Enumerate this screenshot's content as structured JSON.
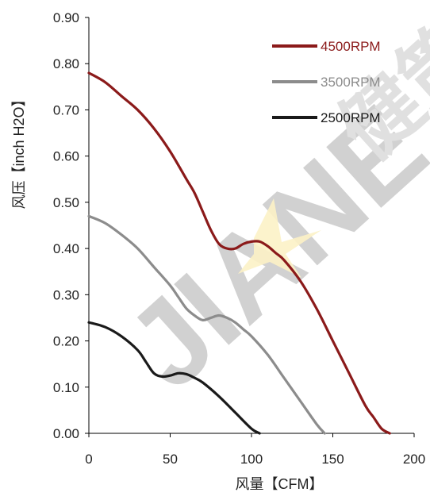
{
  "chart_data": {
    "type": "line",
    "title": "",
    "xlabel": "风量【CFM】",
    "ylabel": "风压【inch H2O】",
    "xlim": [
      0,
      200
    ],
    "ylim": [
      0,
      0.9
    ],
    "x_ticks": [
      "0",
      "50",
      "100",
      "150",
      "200"
    ],
    "y_ticks": [
      "0.00",
      "0.10",
      "0.20",
      "0.30",
      "0.40",
      "0.50",
      "0.60",
      "0.70",
      "0.80",
      "0.90"
    ],
    "grid": false,
    "legend_position": "top-right",
    "series": [
      {
        "name": "4500RPM",
        "color": "#8b1a1a",
        "x": [
          0,
          10,
          20,
          30,
          40,
          50,
          60,
          65,
          70,
          75,
          80,
          85,
          90,
          95,
          100,
          105,
          110,
          115,
          120,
          130,
          140,
          150,
          160,
          170,
          175,
          180,
          185
        ],
        "y": [
          0.78,
          0.76,
          0.73,
          0.7,
          0.66,
          0.61,
          0.55,
          0.52,
          0.48,
          0.44,
          0.41,
          0.4,
          0.4,
          0.41,
          0.415,
          0.415,
          0.405,
          0.39,
          0.375,
          0.33,
          0.27,
          0.2,
          0.13,
          0.06,
          0.035,
          0.01,
          0.0
        ]
      },
      {
        "name": "3500RPM",
        "color": "#8c8c8c",
        "x": [
          0,
          10,
          20,
          30,
          40,
          50,
          55,
          60,
          65,
          70,
          75,
          80,
          85,
          90,
          95,
          100,
          110,
          120,
          130,
          140,
          145
        ],
        "y": [
          0.47,
          0.455,
          0.43,
          0.4,
          0.36,
          0.32,
          0.295,
          0.27,
          0.255,
          0.245,
          0.25,
          0.255,
          0.25,
          0.24,
          0.225,
          0.21,
          0.17,
          0.12,
          0.07,
          0.02,
          0.0
        ]
      },
      {
        "name": "2500RPM",
        "color": "#1a1a1a",
        "x": [
          0,
          10,
          20,
          30,
          35,
          40,
          45,
          50,
          55,
          60,
          65,
          70,
          80,
          90,
          100,
          105
        ],
        "y": [
          0.24,
          0.23,
          0.21,
          0.18,
          0.155,
          0.13,
          0.123,
          0.125,
          0.13,
          0.128,
          0.12,
          0.11,
          0.08,
          0.045,
          0.01,
          0.0
        ]
      }
    ]
  },
  "watermark": {
    "text": "JIANE",
    "brand_text": "健策"
  }
}
